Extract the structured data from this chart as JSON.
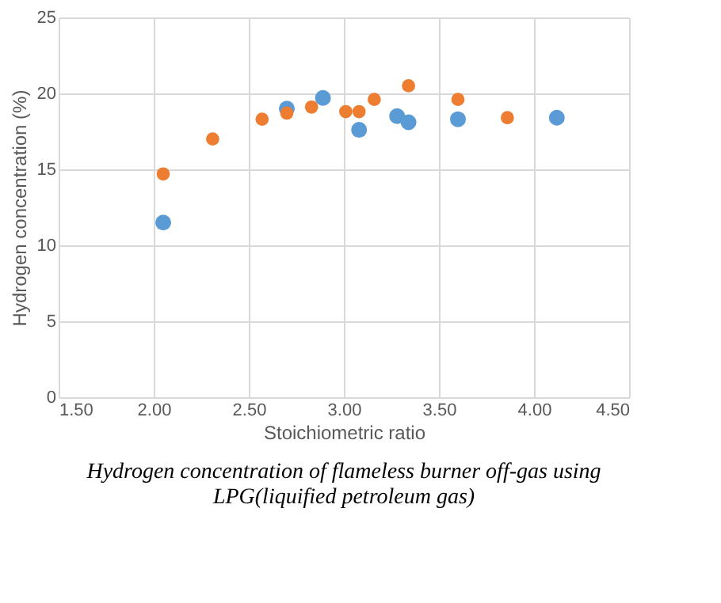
{
  "chart_data": {
    "type": "scatter",
    "title": "Hydrogen concentration of flameless burner off-gas using LPG(liquified petroleum gas)",
    "xlabel": "Stoichiometric ratio",
    "ylabel": "Hydrogen concentration (%)",
    "series": [
      {
        "color": "#5b9bd5",
        "x": [
          2.05,
          2.7,
          2.89,
          3.08,
          3.28,
          3.34,
          3.6,
          4.12
        ],
        "values": [
          11.5,
          19.0,
          19.7,
          17.6,
          18.5,
          18.1,
          18.3,
          18.4
        ]
      },
      {
        "color": "#ed7d31",
        "x": [
          2.05,
          2.31,
          2.57,
          2.7,
          2.83,
          3.01,
          3.08,
          3.16,
          3.34,
          3.6,
          3.86
        ],
        "values": [
          14.7,
          17.0,
          18.3,
          18.7,
          19.1,
          18.8,
          18.8,
          19.6,
          20.5,
          19.6,
          18.4
        ]
      }
    ],
    "xlim": [
      1.5,
      4.5
    ],
    "xticks": [
      {
        "value": 1.5,
        "label": "1.50"
      },
      {
        "value": 2.0,
        "label": "2.00"
      },
      {
        "value": 2.5,
        "label": "2.50"
      },
      {
        "value": 3.0,
        "label": "3.00"
      },
      {
        "value": 3.5,
        "label": "3.50"
      },
      {
        "value": 4.0,
        "label": "4.00"
      },
      {
        "value": 4.5,
        "label": "4.50"
      }
    ],
    "ylim": [
      0,
      25
    ],
    "yticks": [
      0,
      5,
      10,
      15,
      20,
      25
    ],
    "grid": true,
    "legend": false,
    "marker": "circle"
  }
}
